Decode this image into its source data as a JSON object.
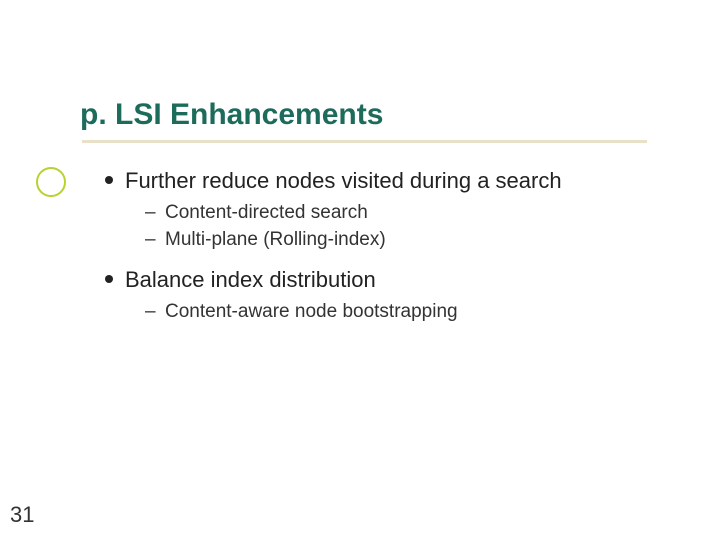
{
  "slide": {
    "title": "p. LSI Enhancements",
    "page_number": "31"
  },
  "colors": {
    "title": "#1d6b5b",
    "underline": "#e9e1c7",
    "ring": "#b6d32f",
    "body_text": "#222222",
    "background": "#ffffff"
  },
  "typography": {
    "title_fontsize_pt": 30,
    "title_weight": "bold",
    "body_fontsize_pt": 22,
    "sub_fontsize_pt": 19,
    "font_family": "Arial"
  },
  "bullets": [
    {
      "text": "Further reduce nodes visited during a search",
      "children": [
        {
          "text": "Content-directed search"
        },
        {
          "text": "Multi-plane (Rolling-index)"
        }
      ]
    },
    {
      "text": "Balance index distribution",
      "children": [
        {
          "text": "Content-aware node bootstrapping"
        }
      ]
    }
  ]
}
